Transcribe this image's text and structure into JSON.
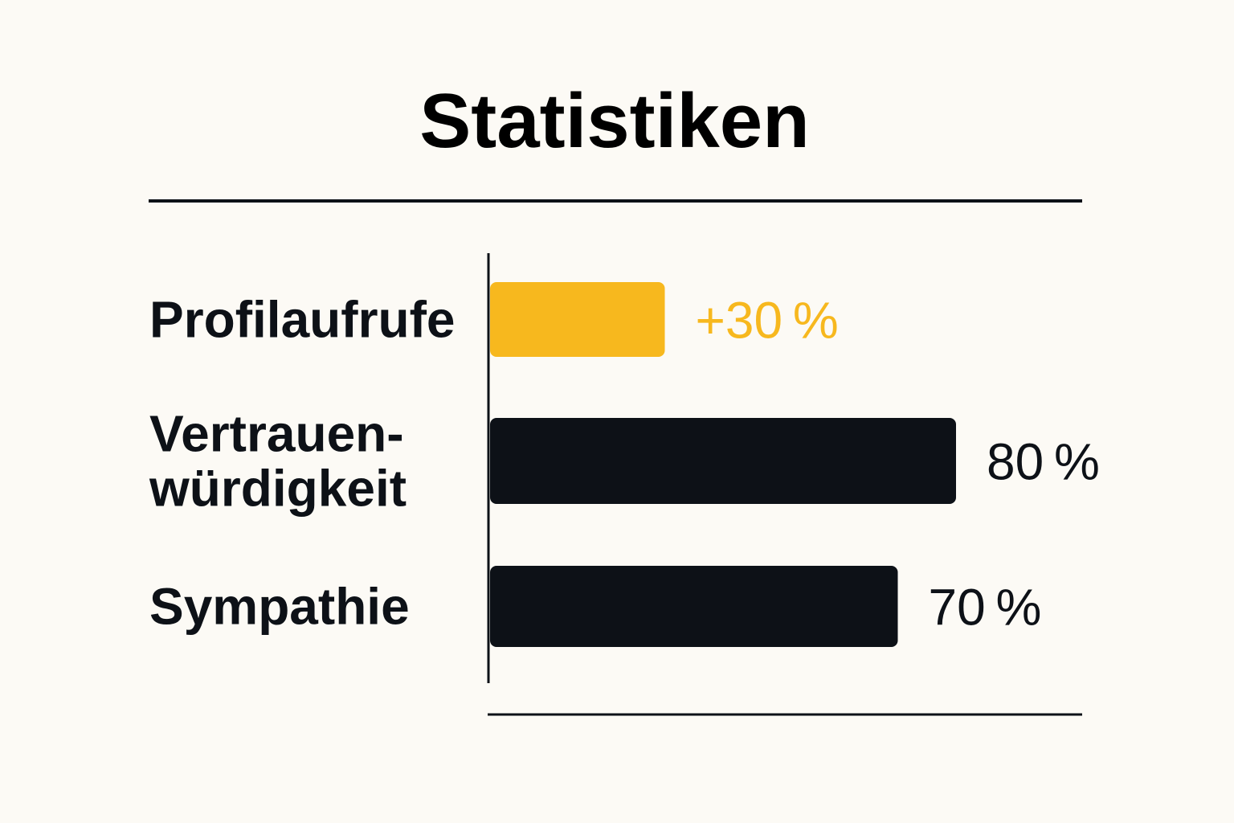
{
  "chart_data": {
    "type": "bar",
    "orientation": "horizontal",
    "title": "Statistiken",
    "categories": [
      [
        "Profilaufrufe"
      ],
      [
        "Vertrauen-",
        "würdigkeit"
      ],
      [
        "Sympathie"
      ]
    ],
    "values": [
      30,
      80,
      70
    ],
    "value_labels": [
      "+30 %",
      "80 %",
      "70 %"
    ],
    "bar_colors": [
      "#f7b81e",
      "#0d1117",
      "#0d1117"
    ],
    "value_label_colors": [
      "#f7b81e",
      "#0d1117",
      "#0d1117"
    ],
    "xlim": [
      0,
      100
    ],
    "xlabel": "",
    "ylabel": "",
    "grid": false,
    "legend": "none"
  },
  "colors": {
    "background": "#fcfaf5",
    "text": "#0d1117",
    "accent": "#f7b81e"
  }
}
